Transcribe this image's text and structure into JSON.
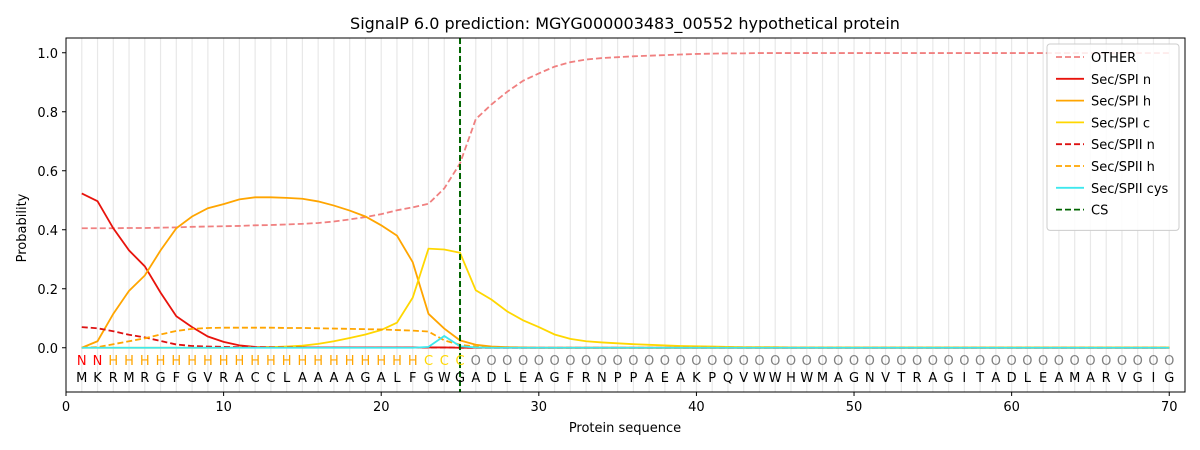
{
  "chart_data": {
    "type": "line",
    "title": "SignalP 6.0 prediction: MGYG000003483_00552 hypothetical protein",
    "xlabel": "Protein sequence",
    "ylabel": "Probability",
    "xlim": [
      0,
      71
    ],
    "ylim": [
      -0.15,
      1.05
    ],
    "xticks": [
      0,
      10,
      20,
      30,
      40,
      50,
      60,
      70
    ],
    "yticks": [
      0.0,
      0.2,
      0.4,
      0.6,
      0.8,
      1.0
    ],
    "xtick_labels": [
      "0",
      "10",
      "20",
      "30",
      "40",
      "50",
      "60",
      "70"
    ],
    "ytick_labels": [
      "0.0",
      "0.2",
      "0.4",
      "0.6",
      "0.8",
      "1.0"
    ],
    "legend_position": "top-right",
    "sequence": [
      "M",
      "K",
      "R",
      "M",
      "R",
      "G",
      "F",
      "G",
      "V",
      "R",
      "A",
      "C",
      "C",
      "L",
      "A",
      "A",
      "A",
      "A",
      "G",
      "A",
      "L",
      "F",
      "G",
      "W",
      "G",
      "A",
      "D",
      "L",
      "E",
      "A",
      "G",
      "F",
      "R",
      "N",
      "P",
      "P",
      "A",
      "E",
      "A",
      "K",
      "P",
      "Q",
      "V",
      "W",
      "W",
      "H",
      "W",
      "M",
      "A",
      "G",
      "N",
      "V",
      "T",
      "R",
      "A",
      "G",
      "I",
      "T",
      "A",
      "D",
      "L",
      "E",
      "A",
      "M",
      "A",
      "R",
      "V",
      "G",
      "I",
      "G"
    ],
    "regions": [
      "N",
      "N",
      "H",
      "H",
      "H",
      "H",
      "H",
      "H",
      "H",
      "H",
      "H",
      "H",
      "H",
      "H",
      "H",
      "H",
      "H",
      "H",
      "H",
      "H",
      "H",
      "H",
      "C",
      "C",
      "C",
      "O",
      "O",
      "O",
      "O",
      "O",
      "O",
      "O",
      "O",
      "O",
      "O",
      "O",
      "O",
      "O",
      "O",
      "O",
      "O",
      "O",
      "O",
      "O",
      "O",
      "O",
      "O",
      "O",
      "O",
      "O",
      "O",
      "O",
      "O",
      "O",
      "O",
      "O",
      "O",
      "O",
      "O",
      "O",
      "O",
      "O",
      "O",
      "O",
      "O",
      "O",
      "O",
      "O",
      "O",
      "O"
    ],
    "region_colors": {
      "N": "#ff0000",
      "H": "#ffa500",
      "C": "#ffd700",
      "O": "#808080"
    },
    "cleavage_site": 25,
    "series": [
      {
        "name": "OTHER",
        "color": "#f08080",
        "dash": "dashed",
        "values": [
          0.405,
          0.405,
          0.405,
          0.406,
          0.406,
          0.407,
          0.408,
          0.41,
          0.411,
          0.412,
          0.413,
          0.415,
          0.416,
          0.418,
          0.42,
          0.423,
          0.428,
          0.435,
          0.443,
          0.453,
          0.466,
          0.476,
          0.488,
          0.54,
          0.625,
          0.775,
          0.825,
          0.868,
          0.905,
          0.93,
          0.953,
          0.968,
          0.977,
          0.982,
          0.985,
          0.988,
          0.99,
          0.992,
          0.994,
          0.996,
          0.997,
          0.998,
          0.998,
          0.999,
          0.999,
          0.999,
          0.999,
          0.999,
          0.999,
          0.999,
          0.999,
          0.999,
          0.999,
          0.999,
          0.999,
          0.999,
          0.999,
          0.999,
          0.999,
          0.999,
          0.999,
          0.999,
          0.999,
          0.999,
          0.999,
          0.999,
          0.999,
          0.999,
          0.999,
          0.999
        ]
      },
      {
        "name": "Sec/SPI n",
        "color": "#e8130c",
        "dash": "solid",
        "values": [
          0.523,
          0.497,
          0.405,
          0.33,
          0.276,
          0.187,
          0.107,
          0.07,
          0.038,
          0.02,
          0.008,
          0.003,
          0.002,
          0.001,
          0.001,
          0.001,
          0.001,
          0.001,
          0.001,
          0.001,
          0.001,
          0.001,
          0.001,
          0.001,
          0.0,
          0.0,
          0.0,
          0.0,
          0.0,
          0.0,
          0.0,
          0.0,
          0.0,
          0.0,
          0.0,
          0.0,
          0.0,
          0.0,
          0.0,
          0.0,
          0.0,
          0.0,
          0.0,
          0.0,
          0.0,
          0.0,
          0.0,
          0.0,
          0.0,
          0.0,
          0.0,
          0.0,
          0.0,
          0.0,
          0.0,
          0.0,
          0.0,
          0.0,
          0.0,
          0.0,
          0.0,
          0.0,
          0.0,
          0.0,
          0.0,
          0.0,
          0.0,
          0.0,
          0.0,
          0.0
        ]
      },
      {
        "name": "Sec/SPI h",
        "color": "#ffa500",
        "dash": "solid",
        "values": [
          0.0,
          0.022,
          0.115,
          0.193,
          0.245,
          0.33,
          0.405,
          0.445,
          0.473,
          0.487,
          0.503,
          0.51,
          0.51,
          0.508,
          0.505,
          0.496,
          0.482,
          0.465,
          0.445,
          0.415,
          0.38,
          0.29,
          0.115,
          0.065,
          0.025,
          0.01,
          0.004,
          0.002,
          0.001,
          0.0,
          0.0,
          0.0,
          0.0,
          0.0,
          0.0,
          0.0,
          0.0,
          0.0,
          0.0,
          0.0,
          0.0,
          0.0,
          0.0,
          0.0,
          0.0,
          0.0,
          0.0,
          0.0,
          0.0,
          0.0,
          0.0,
          0.0,
          0.0,
          0.0,
          0.0,
          0.0,
          0.0,
          0.0,
          0.0,
          0.0,
          0.0,
          0.0,
          0.0,
          0.0,
          0.0,
          0.0,
          0.0,
          0.0,
          0.0,
          0.0
        ]
      },
      {
        "name": "Sec/SPI c",
        "color": "#ffd700",
        "dash": "solid",
        "values": [
          0.0,
          0.0,
          0.0,
          0.0,
          0.0,
          0.0,
          0.0,
          0.0,
          0.0,
          0.0,
          0.001,
          0.001,
          0.002,
          0.004,
          0.007,
          0.013,
          0.022,
          0.033,
          0.045,
          0.06,
          0.085,
          0.17,
          0.336,
          0.333,
          0.322,
          0.195,
          0.163,
          0.123,
          0.093,
          0.07,
          0.045,
          0.03,
          0.022,
          0.018,
          0.015,
          0.012,
          0.01,
          0.008,
          0.006,
          0.005,
          0.004,
          0.003,
          0.002,
          0.002,
          0.002,
          0.001,
          0.001,
          0.001,
          0.001,
          0.001,
          0.001,
          0.001,
          0.001,
          0.001,
          0.001,
          0.001,
          0.001,
          0.001,
          0.001,
          0.001,
          0.001,
          0.001,
          0.001,
          0.001,
          0.001,
          0.001,
          0.001,
          0.001,
          0.001,
          0.001
        ]
      },
      {
        "name": "Sec/SPII n",
        "color": "#dd1111",
        "dash": "dashed",
        "values": [
          0.07,
          0.066,
          0.056,
          0.044,
          0.035,
          0.023,
          0.011,
          0.006,
          0.004,
          0.003,
          0.002,
          0.001,
          0.001,
          0.001,
          0.001,
          0.001,
          0.001,
          0.001,
          0.001,
          0.001,
          0.001,
          0.001,
          0.001,
          0.001,
          0.0,
          0.0,
          0.0,
          0.0,
          0.0,
          0.0,
          0.0,
          0.0,
          0.0,
          0.0,
          0.0,
          0.0,
          0.0,
          0.0,
          0.0,
          0.0,
          0.0,
          0.0,
          0.0,
          0.0,
          0.0,
          0.0,
          0.0,
          0.0,
          0.0,
          0.0,
          0.0,
          0.0,
          0.0,
          0.0,
          0.0,
          0.0,
          0.0,
          0.0,
          0.0,
          0.0,
          0.0,
          0.0,
          0.0,
          0.0,
          0.0,
          0.0,
          0.0,
          0.0,
          0.0,
          0.0
        ]
      },
      {
        "name": "Sec/SPII h",
        "color": "#ffa500",
        "dash": "dashed",
        "values": [
          0.0,
          0.002,
          0.012,
          0.022,
          0.032,
          0.045,
          0.057,
          0.064,
          0.067,
          0.068,
          0.068,
          0.068,
          0.068,
          0.067,
          0.067,
          0.066,
          0.065,
          0.064,
          0.063,
          0.062,
          0.06,
          0.058,
          0.055,
          0.025,
          0.01,
          0.004,
          0.002,
          0.001,
          0.0,
          0.0,
          0.0,
          0.0,
          0.0,
          0.0,
          0.0,
          0.0,
          0.0,
          0.0,
          0.0,
          0.0,
          0.0,
          0.0,
          0.0,
          0.0,
          0.0,
          0.0,
          0.0,
          0.0,
          0.0,
          0.0,
          0.0,
          0.0,
          0.0,
          0.0,
          0.0,
          0.0,
          0.0,
          0.0,
          0.0,
          0.0,
          0.0,
          0.0,
          0.0,
          0.0,
          0.0,
          0.0,
          0.0,
          0.0,
          0.0,
          0.0
        ]
      },
      {
        "name": "Sec/SPII cys",
        "color": "#3ee8ee",
        "dash": "solid",
        "values": [
          0.0,
          0.0,
          0.0,
          0.0,
          0.0,
          0.0,
          0.0,
          0.0,
          0.0,
          0.0,
          0.0,
          0.0,
          0.0,
          0.0,
          0.0,
          0.0,
          0.0,
          0.0,
          0.0,
          0.0,
          0.0,
          0.0,
          0.003,
          0.04,
          0.005,
          0.001,
          0.0,
          0.0,
          0.0,
          0.0,
          0.0,
          0.0,
          0.0,
          0.0,
          0.0,
          0.0,
          0.0,
          0.0,
          0.0,
          0.0,
          0.0,
          0.0,
          0.0,
          0.0,
          0.0,
          0.0,
          0.0,
          0.0,
          0.0,
          0.0,
          0.0,
          0.0,
          0.0,
          0.0,
          0.0,
          0.0,
          0.0,
          0.0,
          0.0,
          0.0,
          0.0,
          0.0,
          0.0,
          0.0,
          0.0,
          0.0,
          0.0,
          0.0,
          0.0,
          0.0
        ]
      },
      {
        "name": "CS",
        "color": "#006400",
        "dash": "dashed",
        "kind": "vline",
        "x": 25
      }
    ]
  }
}
